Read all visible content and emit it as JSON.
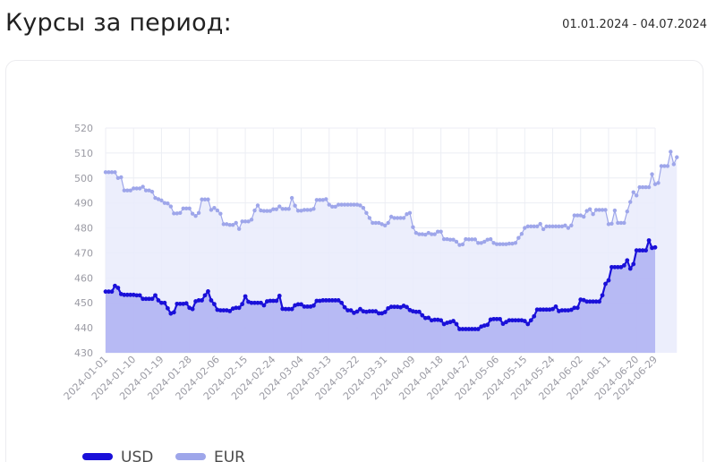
{
  "header": {
    "title": "Курсы за период:",
    "period": "01.01.2024 - 04.07.2024"
  },
  "colors": {
    "usd": "#1a10d9",
    "eur": "#9ea6ea",
    "usd_fill": "#b4b6f3",
    "eur_fill": "#e9ebfb",
    "grid": "#eceef4",
    "tick_text": "#9a9aa3"
  },
  "chart_data": {
    "type": "area",
    "ylim": [
      430,
      520
    ],
    "yticks": [
      430,
      440,
      450,
      460,
      470,
      480,
      490,
      500,
      510,
      520
    ],
    "x_tick_labels": [
      "2024-01-01",
      "2024-01-10",
      "2024-01-19",
      "2024-01-28",
      "2024-02-06",
      "2024-02-15",
      "2024-02-24",
      "2024-03-04",
      "2024-03-13",
      "2024-03-22",
      "2024-03-31",
      "2024-04-09",
      "2024-04-18",
      "2024-04-27",
      "2024-05-06",
      "2024-05-15",
      "2024-05-24",
      "2024-06-02",
      "2024-06-11",
      "2024-06-20",
      "2024-06-29"
    ],
    "grid": true,
    "legend_position": "bottom-left",
    "series": [
      {
        "name": "USD",
        "values": [
          454.5,
          454.5,
          454.5,
          456.8,
          456.0,
          453.5,
          453.2,
          453.2,
          453.2,
          453.2,
          453.0,
          453.0,
          451.6,
          451.6,
          451.6,
          451.6,
          453.0,
          451.0,
          450.0,
          450.0,
          447.8,
          445.7,
          446.2,
          449.6,
          449.6,
          449.6,
          449.8,
          448.0,
          447.5,
          450.6,
          451.0,
          451.0,
          453.0,
          454.6,
          451.0,
          449.5,
          447.2,
          447.0,
          447.0,
          447.0,
          446.7,
          447.7,
          448.0,
          448.0,
          449.5,
          452.6,
          450.4,
          450.0,
          450.0,
          450.0,
          450.0,
          449.0,
          450.6,
          450.8,
          450.8,
          450.8,
          452.8,
          447.6,
          447.5,
          447.5,
          447.5,
          449.0,
          449.4,
          449.4,
          448.5,
          448.5,
          448.5,
          448.9,
          450.8,
          450.8,
          451.0,
          451.0,
          451.0,
          451.0,
          451.0,
          451.0,
          450.0,
          448.2,
          447.0,
          447.0,
          446.0,
          446.5,
          447.5,
          446.6,
          446.4,
          446.6,
          446.6,
          446.6,
          445.8,
          445.8,
          446.3,
          447.8,
          448.4,
          448.4,
          448.4,
          448.2,
          448.8,
          448.3,
          447.1,
          446.6,
          446.4,
          446.4,
          445.0,
          443.9,
          444.0,
          443.0,
          443.2,
          443.2,
          443.0,
          441.5,
          442.0,
          442.3,
          442.7,
          441.5,
          439.5,
          439.5,
          439.5,
          439.5,
          439.5,
          439.5,
          439.5,
          440.5,
          440.9,
          441.2,
          443.3,
          443.5,
          443.5,
          443.5,
          441.6,
          442.3,
          443.0,
          443.0,
          443.0,
          443.0,
          443.0,
          442.7,
          441.5,
          443.0,
          444.6,
          447.3,
          447.3,
          447.3,
          447.3,
          447.3,
          447.5,
          448.5,
          446.7,
          447.0,
          447.0,
          447.0,
          447.2,
          448.0,
          448.0,
          451.3,
          451.1,
          450.5,
          450.5,
          450.5,
          450.5,
          450.5,
          453.0,
          457.6,
          459.0,
          464.3,
          464.3,
          464.3,
          464.3,
          465.0,
          467.0,
          463.7,
          465.5,
          471.0,
          471.0,
          471.0,
          471.0,
          475.0,
          472.0,
          472.2
        ]
      },
      {
        "name": "EUR",
        "values": [
          502.3,
          502.3,
          502.3,
          502.3,
          500.0,
          500.3,
          495.0,
          495.0,
          495.0,
          495.8,
          495.8,
          495.8,
          496.5,
          495.0,
          495.0,
          494.5,
          492.0,
          491.5,
          491.0,
          490.0,
          489.8,
          488.6,
          485.8,
          485.8,
          486.0,
          487.8,
          487.8,
          487.8,
          485.7,
          484.8,
          486.0,
          491.4,
          491.4,
          491.4,
          487.2,
          488.0,
          487.0,
          485.7,
          481.5,
          481.5,
          481.2,
          481.2,
          482.0,
          479.6,
          482.6,
          482.6,
          482.6,
          483.3,
          487.0,
          489.0,
          487.0,
          486.8,
          486.8,
          486.8,
          487.5,
          487.5,
          488.6,
          487.6,
          487.6,
          487.6,
          492.0,
          488.9,
          486.9,
          486.9,
          487.2,
          487.2,
          487.2,
          487.6,
          491.2,
          491.2,
          491.2,
          491.5,
          489.3,
          488.5,
          488.5,
          489.3,
          489.3,
          489.3,
          489.3,
          489.3,
          489.3,
          489.3,
          489.0,
          488.0,
          486.0,
          484.0,
          482.0,
          482.0,
          482.0,
          481.5,
          481.0,
          482.0,
          484.5,
          484.0,
          484.0,
          484.0,
          484.0,
          485.5,
          486.0,
          480.3,
          478.0,
          477.5,
          477.5,
          477.3,
          478.0,
          477.5,
          477.5,
          478.5,
          478.5,
          475.5,
          475.5,
          475.3,
          475.3,
          474.5,
          473.2,
          473.4,
          475.5,
          475.4,
          475.4,
          475.4,
          474.0,
          474.0,
          474.5,
          475.3,
          475.5,
          474.0,
          473.5,
          473.5,
          473.5,
          473.5,
          473.7,
          473.7,
          474.0,
          476.0,
          477.6,
          480.0,
          480.6,
          480.6,
          480.6,
          480.6,
          481.6,
          479.5,
          480.6,
          480.6,
          480.6,
          480.6,
          480.6,
          480.6,
          481.0,
          480.0,
          481.0,
          485.0,
          485.0,
          485.0,
          484.5,
          486.8,
          487.5,
          485.5,
          487.2,
          487.2,
          487.2,
          487.2,
          481.5,
          481.7,
          487.0,
          482.0,
          482.0,
          482.0,
          486.6,
          490.4,
          494.3,
          493.0,
          496.3,
          496.3,
          496.3,
          496.3,
          501.5,
          497.5,
          498.0,
          504.8,
          504.8,
          504.8,
          510.5,
          505.5,
          508.3
        ]
      }
    ]
  },
  "legend": [
    {
      "label": "USD"
    },
    {
      "label": "EUR"
    }
  ]
}
